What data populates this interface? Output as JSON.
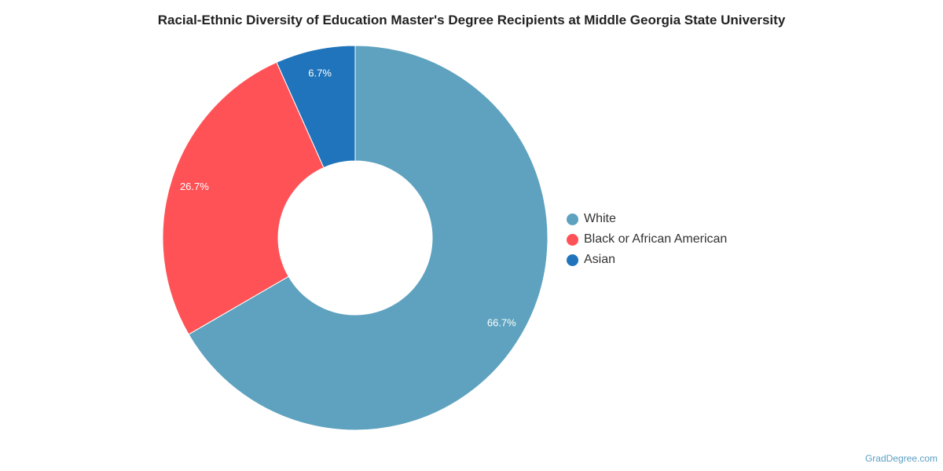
{
  "chart_data": {
    "type": "pie",
    "title": "Racial-Ethnic Diversity of Education Master's Degree Recipients at Middle Georgia State University",
    "categories": [
      "White",
      "Black or African American",
      "Asian"
    ],
    "values": [
      66.7,
      26.7,
      6.7
    ],
    "labels": [
      "66.7%",
      "26.7%",
      "6.7%"
    ],
    "colors": [
      "#5ea2bf",
      "#ff5256",
      "#1f74bb"
    ],
    "donut": true,
    "legend_position": "right"
  },
  "source": "GradDegree.com"
}
